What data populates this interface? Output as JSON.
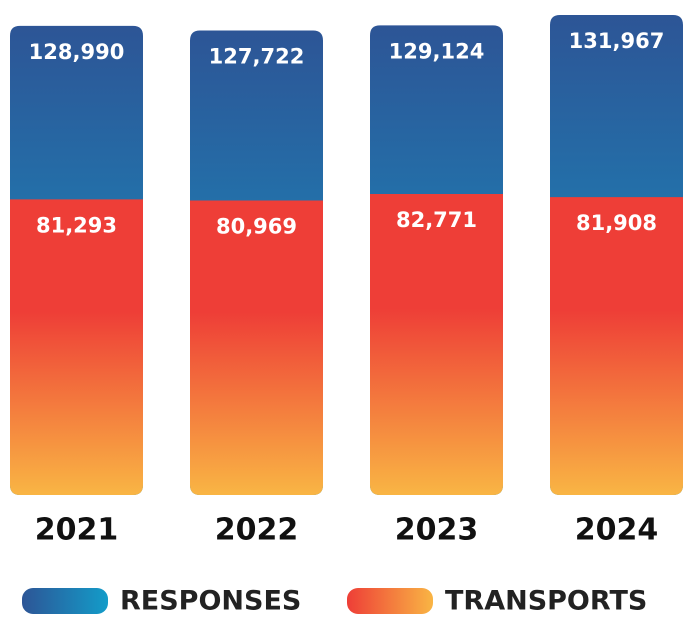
{
  "chart_data": {
    "type": "bar",
    "categories": [
      "2021",
      "2022",
      "2023",
      "2024"
    ],
    "series": [
      {
        "name": "RESPONSES",
        "color": [
          "#2d5596",
          "#139cc9"
        ],
        "values": [
          128990,
          127722,
          129124,
          131967
        ],
        "value_labels": [
          "128,990",
          "127,722",
          "129,124",
          "131,967"
        ]
      },
      {
        "name": "TRANSPORTS",
        "color": [
          "#ee3e37",
          "#f9b544"
        ],
        "values": [
          81293,
          80969,
          82771,
          81908
        ],
        "value_labels": [
          "81,293",
          "80,969",
          "82,771",
          "81,908"
        ]
      }
    ]
  }
}
